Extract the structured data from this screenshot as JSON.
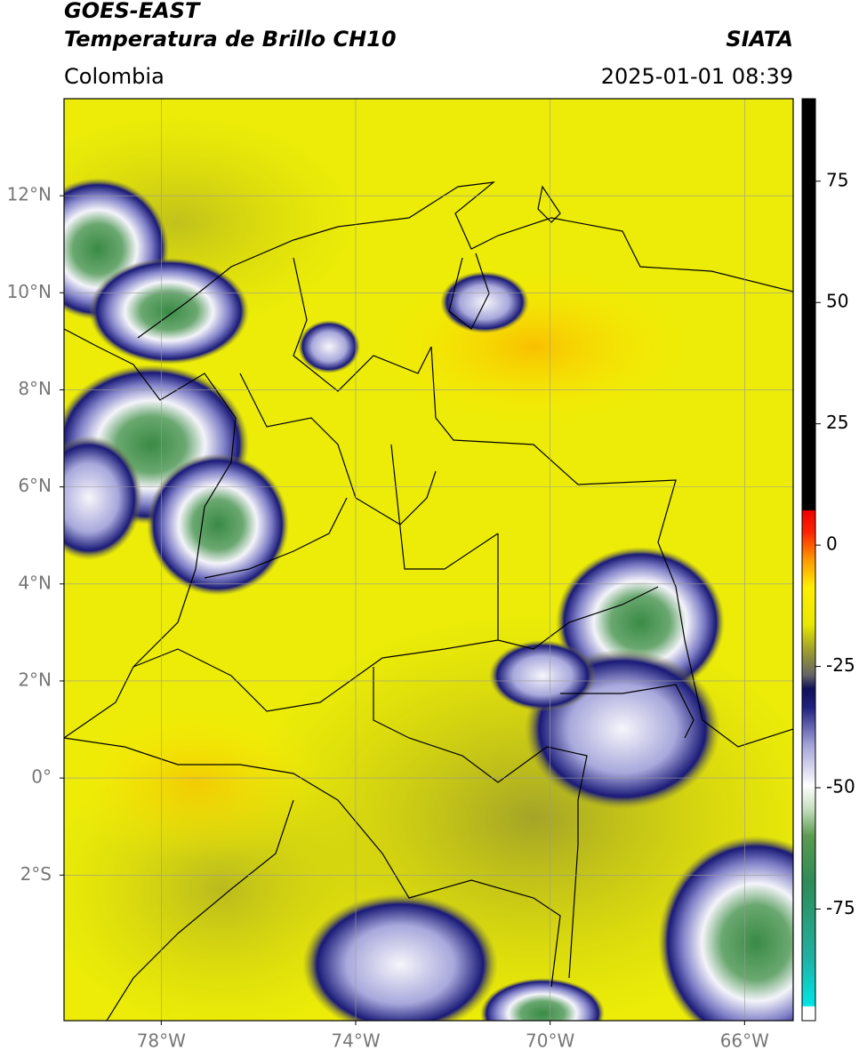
{
  "header": {
    "satellite": "GOES-EAST",
    "product": "Temperatura de Brillo CH10",
    "source": "SIATA",
    "region": "Colombia",
    "timestamp": "2025-01-01 08:39"
  },
  "map": {
    "lon_range": [
      -80,
      -65
    ],
    "lat_range": [
      -5,
      14
    ],
    "lon_ticks": [
      {
        "value": -78,
        "label": "78°W"
      },
      {
        "value": -74,
        "label": "74°W"
      },
      {
        "value": -70,
        "label": "70°W"
      },
      {
        "value": -66,
        "label": "66°W"
      }
    ],
    "lat_ticks": [
      {
        "value": 12,
        "label": "12°N"
      },
      {
        "value": 10,
        "label": "10°N"
      },
      {
        "value": 8,
        "label": "8°N"
      },
      {
        "value": 6,
        "label": "6°N"
      },
      {
        "value": 4,
        "label": "4°N"
      },
      {
        "value": 2,
        "label": "2°N"
      },
      {
        "value": 0,
        "label": "0°"
      },
      {
        "value": -2,
        "label": "2°S"
      }
    ],
    "grid": true
  },
  "colorbar": {
    "range": [
      -98,
      92
    ],
    "ticks": [
      75,
      50,
      25,
      0,
      -25,
      -50,
      -75
    ]
  }
}
